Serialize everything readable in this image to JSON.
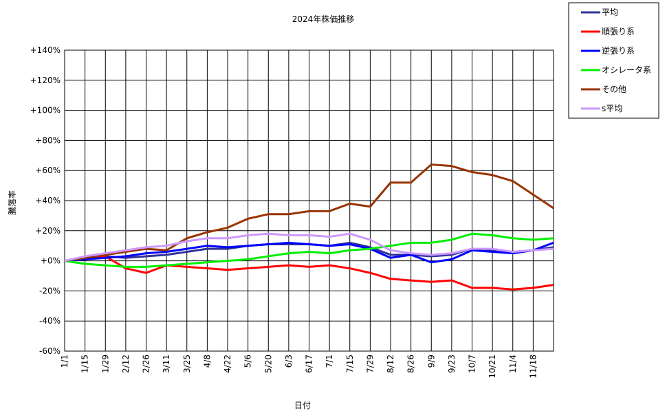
{
  "chart_data": {
    "type": "line",
    "title": "2024年株価推移",
    "x_label": "日付",
    "y_label": "騰落率",
    "categories": [
      "1/1",
      "1/15",
      "1/29",
      "2/12",
      "2/26",
      "3/11",
      "3/25",
      "4/8",
      "4/22",
      "5/6",
      "5/20",
      "6/3",
      "6/17",
      "7/1",
      "7/15",
      "7/29",
      "8/12",
      "8/26",
      "9/9",
      "9/23",
      "10/7",
      "10/21",
      "11/4",
      "11/18",
      null
    ],
    "ylim": [
      -60,
      140
    ],
    "yticks": [
      {
        "value": -60,
        "label": "-60%"
      },
      {
        "value": -40,
        "label": "-40%"
      },
      {
        "value": -20,
        "label": "-20%"
      },
      {
        "value": 0,
        "label": "+0%"
      },
      {
        "value": 20,
        "label": "+20%"
      },
      {
        "value": 40,
        "label": "+40%"
      },
      {
        "value": 60,
        "label": "+60%"
      },
      {
        "value": 80,
        "label": "+80%"
      },
      {
        "value": 100,
        "label": "+100%"
      },
      {
        "value": 120,
        "label": "+120%"
      },
      {
        "value": 140,
        "label": "+140%"
      }
    ],
    "grid": true,
    "legend": "top-right",
    "series": [
      {
        "name": "平均",
        "color": "#333399",
        "values": [
          0,
          2,
          3,
          2,
          3,
          4,
          6,
          8,
          8,
          10,
          11,
          11,
          11,
          10,
          12,
          9,
          4,
          4,
          3,
          4,
          8,
          7,
          6,
          7,
          9
        ]
      },
      {
        "name": "順張り系",
        "color": "#ff0000",
        "values": [
          0,
          2,
          3,
          -5,
          -8,
          -3,
          -4,
          -5,
          -6,
          -5,
          -4,
          -3,
          -4,
          -3,
          -5,
          -8,
          -12,
          -13,
          -14,
          -13,
          -18,
          -18,
          -19,
          -18,
          -16
        ]
      },
      {
        "name": "逆張り系",
        "color": "#0000ff",
        "values": [
          0,
          1,
          2,
          3,
          5,
          6,
          8,
          10,
          9,
          10,
          11,
          12,
          11,
          10,
          11,
          8,
          2,
          4,
          -1,
          1,
          7,
          6,
          5,
          7,
          12
        ]
      },
      {
        "name": "オシレータ系",
        "color": "#00ee00",
        "values": [
          0,
          -2,
          -3,
          -4,
          -4,
          -3,
          -2,
          -1,
          0,
          1,
          3,
          5,
          6,
          5,
          7,
          8,
          10,
          12,
          12,
          14,
          18,
          17,
          15,
          14,
          15
        ]
      },
      {
        "name": "その他",
        "color": "#993300",
        "values": [
          0,
          2,
          4,
          6,
          8,
          7,
          15,
          19,
          22,
          28,
          31,
          31,
          33,
          33,
          38,
          36,
          52,
          52,
          64,
          63,
          59,
          57,
          53,
          44,
          35
        ]
      },
      {
        "name": "s平均",
        "color": "#cc99ff",
        "values": [
          0,
          3,
          5,
          7,
          9,
          10,
          13,
          15,
          15,
          17,
          18,
          17,
          17,
          16,
          18,
          14,
          7,
          5,
          4,
          5,
          8,
          8,
          6,
          7,
          8
        ]
      }
    ]
  }
}
